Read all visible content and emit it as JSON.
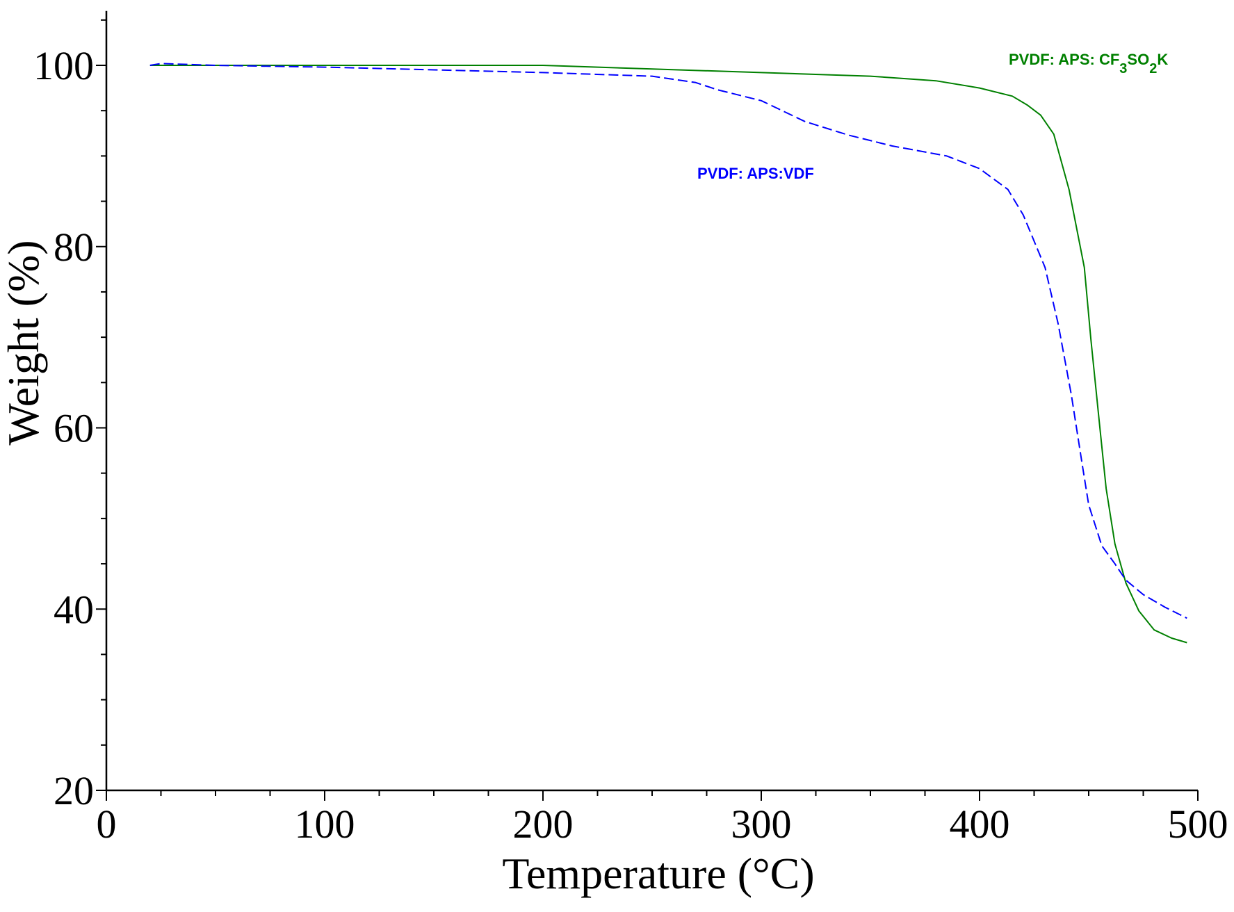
{
  "chart_data": {
    "type": "line",
    "title": "",
    "xlabel": "Temperature (°C)",
    "ylabel": "Weight (%)",
    "xlim": [
      0,
      500
    ],
    "ylim": [
      20,
      106
    ],
    "x_ticks": [
      0,
      100,
      200,
      300,
      400,
      500
    ],
    "x_minor_step": 25,
    "y_ticks": [
      20,
      40,
      60,
      80,
      100
    ],
    "y_minor_step": 5,
    "grid": false,
    "series": [
      {
        "name": "PVDF: APS: CF3SO2K",
        "color": "#008000",
        "dash": "solid",
        "label_parts": [
          "PVDF: APS: CF",
          "3",
          "SO",
          "2",
          "K"
        ],
        "x": [
          20,
          100,
          200,
          250,
          300,
          350,
          380,
          400,
          415,
          422,
          428,
          434,
          441,
          448,
          451,
          455,
          458,
          462,
          467,
          473,
          480,
          488,
          495
        ],
        "y": [
          100,
          100,
          100,
          99.6,
          99.2,
          98.8,
          98.3,
          97.5,
          96.6,
          95.6,
          94.5,
          92.4,
          86.3,
          77.7,
          69.8,
          60.3,
          53.3,
          47.2,
          42.9,
          39.8,
          37.7,
          36.8,
          36.3
        ]
      },
      {
        "name": "PVDF: APS:VDF",
        "color": "#0000ff",
        "dash": "dashed",
        "label_parts": [
          "PVDF: APS:VDF"
        ],
        "x": [
          20,
          25,
          50,
          100,
          150,
          200,
          250,
          270,
          280,
          300,
          320,
          340,
          360,
          385,
          400,
          413,
          420,
          430,
          436,
          442,
          447,
          450,
          456,
          462,
          467,
          475,
          485,
          495
        ],
        "y": [
          100,
          100.2,
          100,
          99.8,
          99.5,
          99.2,
          98.8,
          98.1,
          97.3,
          96.1,
          93.8,
          92.3,
          91.1,
          90.0,
          88.6,
          86.3,
          83.5,
          77.7,
          71.5,
          63.7,
          56.0,
          51.5,
          47.0,
          45.0,
          43.2,
          41.6,
          40.2,
          39.0
        ]
      }
    ]
  }
}
